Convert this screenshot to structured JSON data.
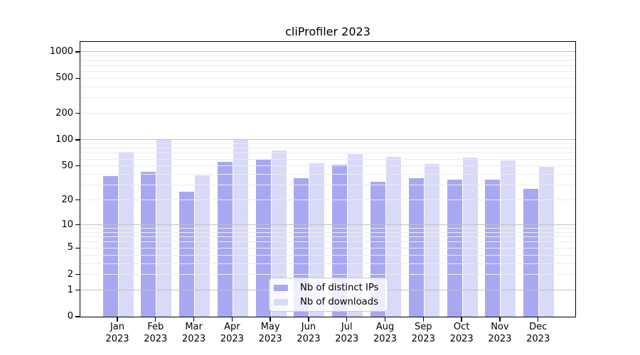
{
  "chart_data": {
    "type": "bar",
    "title": "cliProfiler 2023",
    "x_categories": [
      "Jan",
      "Feb",
      "Mar",
      "Apr",
      "May",
      "Jun",
      "Jul",
      "Aug",
      "Sep",
      "Oct",
      "Nov",
      "Dec"
    ],
    "x_year_label": "2023",
    "y_scale": "log1p",
    "y_ticks": [
      "0",
      "1",
      "2",
      "5",
      "10",
      "20",
      "50",
      "100",
      "200",
      "500",
      "1000"
    ],
    "ylim": [
      0,
      1300
    ],
    "grid": "minor and major horizontal gridlines drawn over bars",
    "legend_position": "lower center",
    "series": [
      {
        "name": "Nb of distinct IPs",
        "color": "#a8a8f2",
        "values": [
          38,
          43,
          25,
          56,
          59,
          36,
          52,
          33,
          36,
          35,
          35,
          27
        ]
      },
      {
        "name": "Nb of downloads",
        "color": "#d9d9f8",
        "values": [
          72,
          100,
          39,
          100,
          76,
          54,
          68,
          64,
          53,
          62,
          58,
          49
        ]
      }
    ]
  }
}
